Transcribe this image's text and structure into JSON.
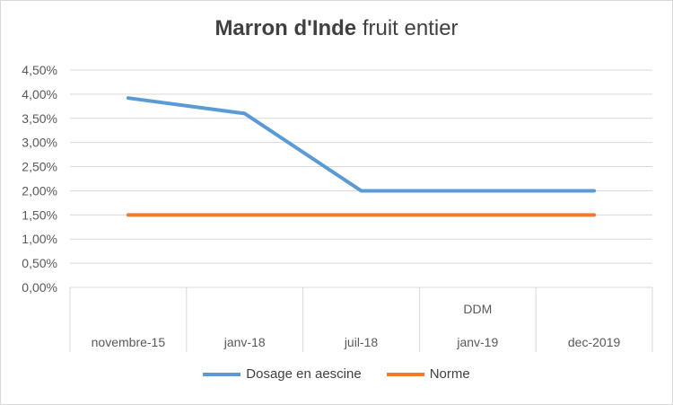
{
  "chart_data": {
    "type": "line",
    "title_bold": "Marron d'Inde",
    "title_rest": "fruit entier",
    "categories": [
      "novembre-15",
      "janv-18",
      "juil-18",
      "janv-19",
      "dec-2019"
    ],
    "category_annotations": [
      "",
      "",
      "",
      "DDM",
      ""
    ],
    "y_ticks": [
      "0,00%",
      "0,50%",
      "1,00%",
      "1,50%",
      "2,00%",
      "2,50%",
      "3,00%",
      "3,50%",
      "4,00%",
      "4,50%"
    ],
    "ylim": [
      0,
      4.5
    ],
    "y_unit": "%",
    "grid": true,
    "legend_position": "bottom",
    "series": [
      {
        "name": "Dosage en aescine",
        "color": "#5b9bd5",
        "values": [
          3.92,
          3.6,
          2.0,
          2.0,
          2.0
        ]
      },
      {
        "name": "Norme",
        "color": "#ed7d31",
        "values": [
          1.5,
          1.5,
          1.5,
          1.5,
          1.5
        ]
      }
    ]
  }
}
